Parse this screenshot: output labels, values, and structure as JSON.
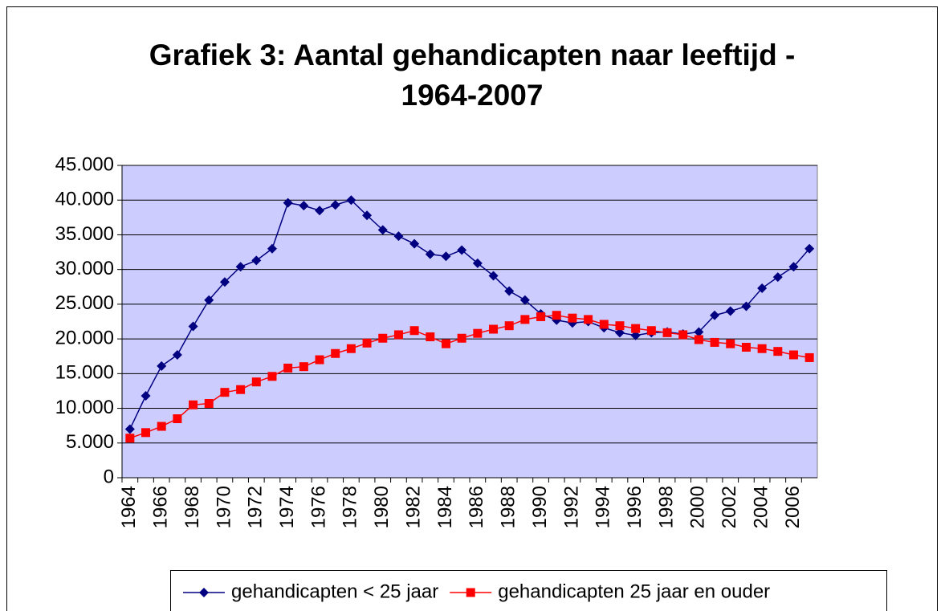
{
  "chart_data": {
    "type": "line",
    "title": "Grafiek 3: Aantal gehandicapten naar leeftijd - 1964-2007",
    "categories": [
      "1964",
      null,
      "1966",
      null,
      "1968",
      null,
      "1970",
      null,
      "1972",
      null,
      "1974",
      null,
      "1976",
      null,
      "1978",
      null,
      "1980",
      null,
      "1982",
      null,
      "1984",
      null,
      "1986",
      null,
      "1988",
      null,
      "1990",
      null,
      "1992",
      null,
      "1994",
      null,
      "1996",
      null,
      "1998",
      null,
      "2000",
      null,
      "2002",
      null,
      "2004",
      null,
      "2006",
      null
    ],
    "series": [
      {
        "name": "gehandicapten < 25 jaar",
        "color": "#000080",
        "marker": "diamond",
        "values": [
          7000,
          11800,
          16100,
          17700,
          21800,
          25600,
          28200,
          30400,
          31300,
          33000,
          39600,
          39200,
          38500,
          39300,
          40000,
          37800,
          35700,
          34800,
          33700,
          32200,
          31900,
          32800,
          30900,
          29100,
          26900,
          25600,
          23600,
          22700,
          22300,
          22500,
          21600,
          20900,
          20500,
          20900,
          21000,
          20700,
          21000,
          23400,
          24000,
          24700,
          27300,
          28900,
          30400,
          33000
        ]
      },
      {
        "name": "gehandicapten 25 jaar en ouder",
        "color": "#ff0000",
        "marker": "square",
        "values": [
          5700,
          6500,
          7400,
          8500,
          10500,
          10700,
          12300,
          12700,
          13800,
          14600,
          15800,
          16000,
          17000,
          17900,
          18600,
          19400,
          20100,
          20600,
          21200,
          20300,
          19300,
          20100,
          20800,
          21400,
          21900,
          22800,
          23200,
          23400,
          23000,
          22800,
          22100,
          21900,
          21500,
          21200,
          20900,
          20600,
          19900,
          19500,
          19300,
          18800,
          18600,
          18200,
          17700,
          17300
        ]
      }
    ],
    "ylim": [
      0,
      45000
    ],
    "yticks": [
      0,
      {
        "value": 5000,
        "label": "5.000"
      },
      {
        "value": 10000,
        "label": "10.000"
      },
      {
        "value": 15000,
        "label": "15.000"
      },
      {
        "value": 20000,
        "label": "20.000"
      },
      {
        "value": 25000,
        "label": "25.000"
      },
      {
        "value": 30000,
        "label": "30.000"
      },
      {
        "value": 35000,
        "label": "35.000"
      },
      {
        "value": 40000,
        "label": "40.000"
      },
      {
        "value": 45000,
        "label": "45.000"
      }
    ],
    "grid": true,
    "legend": "bottom",
    "plot_background": "#ccccff"
  }
}
